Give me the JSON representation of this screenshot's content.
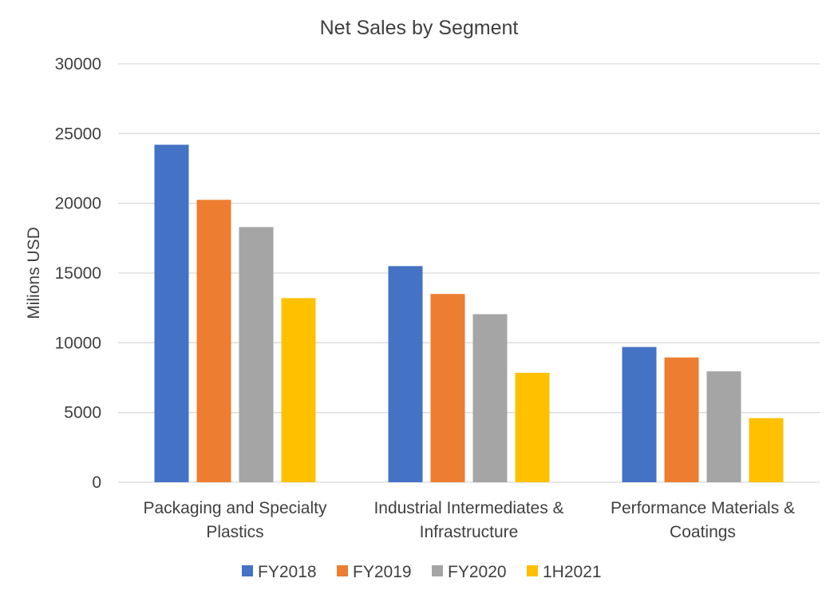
{
  "chart_data": {
    "type": "bar",
    "title": "Net Sales by Segment",
    "xlabel": "",
    "ylabel": "Milions USD",
    "ylim": [
      0,
      30000
    ],
    "yticks": [
      "0",
      "5000",
      "10000",
      "15000",
      "20000",
      "25000",
      "30000"
    ],
    "grid": true,
    "legend_position": "bottom",
    "categories": [
      [
        "Packaging and Specialty",
        "Plastics"
      ],
      [
        "Industrial Intermediates &",
        "Infrastructure"
      ],
      [
        "Performance Materials &",
        "Coatings"
      ]
    ],
    "series": [
      {
        "name": "FY2018",
        "color": "#4472c4",
        "values": [
          24200,
          15500,
          9700
        ]
      },
      {
        "name": "FY2019",
        "color": "#ed7d31",
        "values": [
          20250,
          13500,
          8950
        ]
      },
      {
        "name": "FY2020",
        "color": "#a5a5a5",
        "values": [
          18300,
          12050,
          7950
        ]
      },
      {
        "name": "1H2021",
        "color": "#ffc000",
        "values": [
          13200,
          7850,
          4600
        ]
      }
    ]
  }
}
